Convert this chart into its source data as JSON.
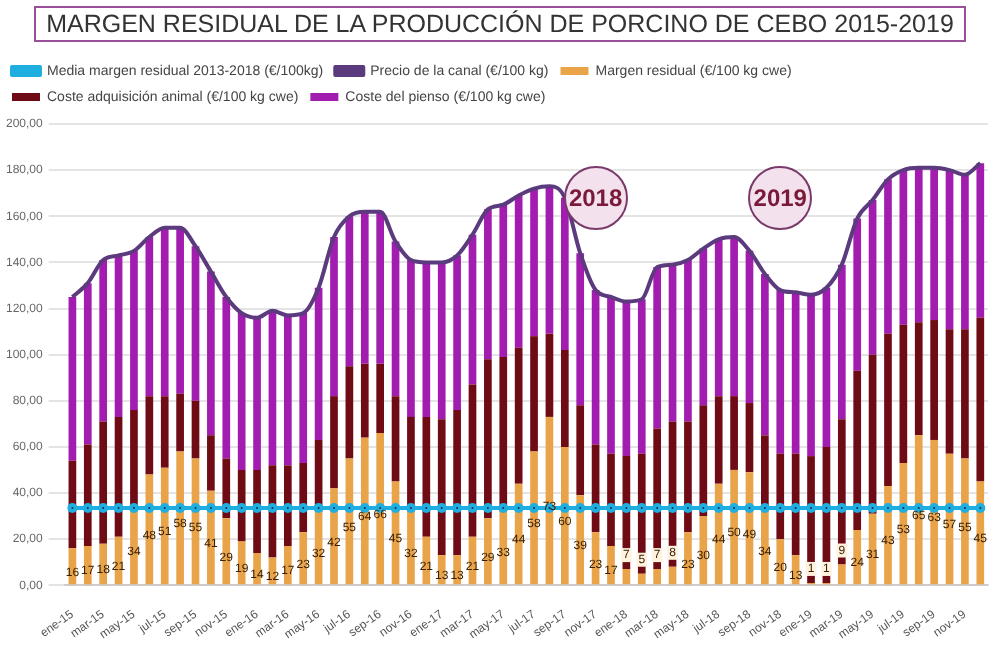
{
  "chart_data": {
    "type": "bar",
    "title": "MARGEN RESIDUAL DE LA PRODUCCIÓN DE PORCINO DE CEBO 2015-2019",
    "stacked": true,
    "grid": "y",
    "legend": "top",
    "categories": [
      "ene-15",
      null,
      "mar-15",
      null,
      "may-15",
      null,
      "jul-15",
      null,
      "sep-15",
      null,
      "nov-15",
      null,
      "ene-16",
      null,
      "mar-16",
      null,
      "may-16",
      null,
      "jul-16",
      null,
      "sep-16",
      null,
      "nov-16",
      null,
      "ene-17",
      null,
      "mar-17",
      null,
      "may-17",
      null,
      "jul-17",
      null,
      "sep-17",
      null,
      "nov-17",
      null,
      "ene-18",
      null,
      "mar-18",
      null,
      "may-18",
      null,
      "jul-18",
      null,
      "sep-18",
      null,
      "nov-18",
      null,
      "ene-19",
      null,
      "mar-19",
      null,
      "may-19",
      null,
      "jul-19",
      null,
      "sep-19",
      null,
      "nov-19",
      null
    ],
    "ylim": [
      0,
      200
    ],
    "yticks": [
      {
        "value": 0,
        "label": "0,00"
      },
      {
        "value": 20,
        "label": "20,00"
      },
      {
        "value": 40,
        "label": "40,00"
      },
      {
        "value": 60,
        "label": "60,00"
      },
      {
        "value": 80,
        "label": "80,00"
      },
      {
        "value": 100,
        "label": "100,00"
      },
      {
        "value": 120,
        "label": "120,00"
      },
      {
        "value": 140,
        "label": "140,00"
      },
      {
        "value": 160,
        "label": "160,00"
      },
      {
        "value": 180,
        "label": "180,00"
      },
      {
        "value": 200,
        "label": "200,00"
      }
    ],
    "series": [
      {
        "name": "Margen residual (€/100 kg cwe)",
        "color": "#e9a44a",
        "values": [
          16,
          17,
          18,
          21,
          34,
          48,
          51,
          58,
          55,
          41,
          29,
          19,
          14,
          12,
          17,
          23,
          32,
          42,
          55,
          64,
          66,
          45,
          32,
          21,
          13,
          13,
          21,
          29,
          33,
          44,
          58,
          73,
          60,
          39,
          23,
          17,
          7,
          5,
          7,
          8,
          23,
          30,
          44,
          50,
          49,
          34,
          20,
          13,
          1,
          1,
          9,
          24,
          31,
          43,
          53,
          65,
          63,
          57,
          55,
          45
        ],
        "value_labels": [
          "16",
          "17",
          "18",
          "21",
          "34",
          "48",
          "51",
          "58",
          "55",
          "41",
          "29",
          "19",
          "14",
          "12",
          "17",
          "23",
          "32",
          "42",
          "55",
          "64",
          "66",
          "45",
          "32",
          "21",
          "13",
          "13",
          "21",
          "29",
          "33",
          "44",
          "58",
          "73",
          "60",
          "39",
          "23",
          "17",
          "7",
          "5",
          "7",
          "8",
          "23",
          "30",
          "44",
          "50",
          "49",
          "34",
          "20",
          "13",
          "1",
          "1",
          "9",
          "24",
          "31",
          "43",
          "53",
          "65",
          "63",
          "57",
          "55",
          "45"
        ]
      },
      {
        "name": "Coste adquisición animal (€/100 kg cwe)",
        "color": "#6e0b14",
        "values": [
          38,
          44,
          53,
          52,
          42,
          34,
          31,
          25,
          25,
          24,
          26,
          31,
          36,
          40,
          35,
          30,
          31,
          40,
          40,
          32,
          30,
          37,
          41,
          52,
          59,
          63,
          66,
          69,
          66,
          59,
          50,
          36,
          42,
          39,
          38,
          40,
          49,
          52,
          61,
          63,
          48,
          48,
          38,
          32,
          30,
          31,
          37,
          44,
          55,
          59,
          63,
          69,
          69,
          66,
          60,
          49,
          52,
          54,
          56,
          71
        ]
      },
      {
        "name": "Coste del pienso (€/100 kg cwe)",
        "color": "#a21caf",
        "values": [
          71,
          70,
          70,
          70,
          69,
          69,
          73,
          72,
          67,
          71,
          70,
          68,
          66,
          67,
          65,
          65,
          66,
          69,
          65,
          66,
          66,
          67,
          68,
          67,
          68,
          67,
          65,
          65,
          66,
          66,
          64,
          64,
          66,
          66,
          67,
          68,
          67,
          67,
          70,
          68,
          70,
          68,
          68,
          69,
          66,
          70,
          71,
          70,
          70,
          69,
          67,
          66,
          67,
          67,
          67,
          67,
          66,
          69,
          67,
          67
        ]
      },
      {
        "name": "Media margen residual 2013-2018 (€/100kg)",
        "type": "line",
        "marker": "circle",
        "color": "#1eaee0",
        "values": [
          33.5,
          33.5,
          33.5,
          33.5,
          33.5,
          33.5,
          33.5,
          33.5,
          33.5,
          33.5,
          33.5,
          33.5,
          33.5,
          33.5,
          33.5,
          33.5,
          33.5,
          33.5,
          33.5,
          33.5,
          33.5,
          33.5,
          33.5,
          33.5,
          33.5,
          33.5,
          33.5,
          33.5,
          33.5,
          33.5,
          33.5,
          33.5,
          33.5,
          33.5,
          33.5,
          33.5,
          33.5,
          33.5,
          33.5,
          33.5,
          33.5,
          33.5,
          33.5,
          33.5,
          33.5,
          33.5,
          33.5,
          33.5,
          33.5,
          33.5,
          33.5,
          33.5,
          33.5,
          33.5,
          33.5,
          33.5,
          33.5,
          33.5,
          33.5,
          33.5
        ]
      },
      {
        "name": "Precio de la canal (€/100 kg)",
        "type": "line",
        "marker": "none",
        "color": "#5b3a7e",
        "values": [
          125,
          131,
          141,
          143,
          145,
          151,
          155,
          155,
          147,
          136,
          125,
          118,
          116,
          119,
          117,
          118,
          129,
          151,
          160,
          162,
          162,
          149,
          141,
          140,
          140,
          143,
          152,
          163,
          165,
          169,
          172,
          173,
          168,
          144,
          128,
          125,
          123,
          124,
          138,
          139,
          141,
          146,
          150,
          151,
          145,
          135,
          128,
          127,
          126,
          129,
          139,
          159,
          167,
          176,
          180,
          181,
          181,
          180,
          178,
          183
        ]
      }
    ],
    "annotations": [
      {
        "text": "2018",
        "x": "nov-17",
        "y": 168
      },
      {
        "text": "2019",
        "x": "nov-18",
        "y": 168
      }
    ]
  }
}
